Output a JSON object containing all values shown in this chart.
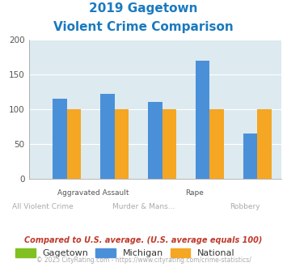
{
  "title_line1": "2019 Gagetown",
  "title_line2": "Violent Crime Comparison",
  "categories": [
    "All Violent Crime",
    "Aggravated Assault",
    "Murder & Mans...",
    "Rape",
    "Robbery"
  ],
  "row1_labels": [
    "Aggravated Assault",
    "Rape"
  ],
  "row1_indices": [
    1,
    3
  ],
  "row2_labels": [
    "All Violent Crime",
    "Murder & Mans...",
    "Robbery"
  ],
  "row2_indices": [
    0,
    2,
    4
  ],
  "series": {
    "Gagetown": [
      0,
      0,
      0,
      0,
      0
    ],
    "Michigan": [
      115,
      122,
      111,
      170,
      65
    ],
    "National": [
      100,
      100,
      100,
      100,
      100
    ]
  },
  "colors": {
    "Gagetown": "#80c020",
    "Michigan": "#4a90d9",
    "National": "#f5a623"
  },
  "ylim": [
    0,
    200
  ],
  "yticks": [
    0,
    50,
    100,
    150,
    200
  ],
  "plot_bg_color": "#ddeaf0",
  "title_color": "#1a7abf",
  "subtitle_text": "Compared to U.S. average. (U.S. average equals 100)",
  "footer_text": "© 2025 CityRating.com - https://www.cityrating.com/crime-statistics/",
  "subtitle_color": "#c0392b",
  "footer_color": "#aaaaaa",
  "bar_width": 0.3
}
